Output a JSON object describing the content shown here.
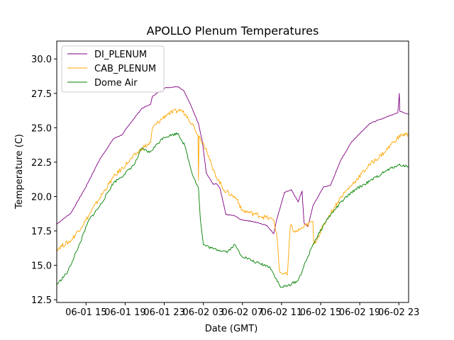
{
  "chart_data": {
    "type": "line",
    "title": "APOLLO Plenum Temperatures",
    "xlabel": "Date (GMT)",
    "ylabel": "Temperature (C)",
    "x_units": "hours since 06-01 00:00 GMT",
    "xlim": [
      12,
      48
    ],
    "ylim": [
      12.3,
      31.3
    ],
    "x_ticks": [
      {
        "value": 15,
        "label": "06-01 15"
      },
      {
        "value": 19,
        "label": "06-01 19"
      },
      {
        "value": 23,
        "label": "06-01 23"
      },
      {
        "value": 27,
        "label": "06-02 03"
      },
      {
        "value": 31,
        "label": "06-02 07"
      },
      {
        "value": 35,
        "label": "06-02 11"
      },
      {
        "value": 39,
        "label": "06-02 15"
      },
      {
        "value": 43,
        "label": "06-02 19"
      },
      {
        "value": 47,
        "label": "06-02 23"
      }
    ],
    "y_ticks": [
      {
        "value": 12.5,
        "label": "12.5"
      },
      {
        "value": 15.0,
        "label": "15.0"
      },
      {
        "value": 17.5,
        "label": "17.5"
      },
      {
        "value": 20.0,
        "label": "20.0"
      },
      {
        "value": 22.5,
        "label": "22.5"
      },
      {
        "value": 25.0,
        "label": "25.0"
      },
      {
        "value": 27.5,
        "label": "27.5"
      },
      {
        "value": 30.0,
        "label": "30.0"
      }
    ],
    "grid": false,
    "legend_position": "top-left",
    "series": [
      {
        "name": "DI_PLENUM",
        "color": "#800080",
        "points": [
          [
            12.0,
            18.0
          ],
          [
            13.45,
            18.8
          ],
          [
            14.9,
            20.6
          ],
          [
            16.4,
            22.7
          ],
          [
            17.8,
            24.2
          ],
          [
            18.7,
            24.5
          ],
          [
            19.6,
            25.4
          ],
          [
            20.7,
            26.4
          ],
          [
            21.6,
            26.7
          ],
          [
            21.8,
            27.3
          ],
          [
            23.1,
            27.9
          ],
          [
            24.4,
            28.0
          ],
          [
            25.0,
            27.7
          ],
          [
            25.8,
            26.5
          ],
          [
            26.5,
            25.3
          ],
          [
            26.9,
            24.0
          ],
          [
            27.3,
            21.7
          ],
          [
            28.0,
            20.9
          ],
          [
            28.4,
            20.9
          ],
          [
            28.7,
            20.6
          ],
          [
            29.3,
            18.7
          ],
          [
            30.2,
            18.6
          ],
          [
            30.9,
            18.3
          ],
          [
            32.0,
            18.2
          ],
          [
            33.5,
            17.9
          ],
          [
            34.2,
            17.3
          ],
          [
            34.5,
            18.3
          ],
          [
            34.9,
            19.3
          ],
          [
            35.3,
            20.3
          ],
          [
            36.0,
            20.5
          ],
          [
            36.7,
            19.6
          ],
          [
            37.1,
            20.4
          ],
          [
            37.3,
            18.1
          ],
          [
            37.7,
            17.8
          ],
          [
            38.2,
            19.3
          ],
          [
            39.3,
            20.7
          ],
          [
            40.0,
            20.8
          ],
          [
            41.1,
            22.7
          ],
          [
            42.2,
            24.0
          ],
          [
            44.0,
            25.3
          ],
          [
            46.5,
            26.0
          ],
          [
            46.9,
            26.1
          ],
          [
            47.05,
            27.5
          ],
          [
            47.1,
            26.2
          ],
          [
            48.0,
            26.0
          ]
        ]
      },
      {
        "name": "CAB_PLENUM",
        "color": "#ffa500",
        "points": [
          [
            12.0,
            16.2
          ],
          [
            13.45,
            16.8
          ],
          [
            14.9,
            18.2
          ],
          [
            16.4,
            19.9
          ],
          [
            17.8,
            21.4
          ],
          [
            19.3,
            22.5
          ],
          [
            20.7,
            23.5
          ],
          [
            21.6,
            23.9
          ],
          [
            21.8,
            25.0
          ],
          [
            23.3,
            26.0
          ],
          [
            24.7,
            26.3
          ],
          [
            25.4,
            25.8
          ],
          [
            26.1,
            25.0
          ],
          [
            26.45,
            24.5
          ],
          [
            26.5,
            21.2
          ],
          [
            26.55,
            24.4
          ],
          [
            26.7,
            24.2
          ],
          [
            27.3,
            23.5
          ],
          [
            28.0,
            21.9
          ],
          [
            29.1,
            20.5
          ],
          [
            30.5,
            19.8
          ],
          [
            30.9,
            19.0
          ],
          [
            32.4,
            18.7
          ],
          [
            34.2,
            18.3
          ],
          [
            34.5,
            17.3
          ],
          [
            34.8,
            14.5
          ],
          [
            35.6,
            14.3
          ],
          [
            35.9,
            17.9
          ],
          [
            36.4,
            17.4
          ],
          [
            37.1,
            17.7
          ],
          [
            38.2,
            18.2
          ],
          [
            38.3,
            16.5
          ],
          [
            39.6,
            18.3
          ],
          [
            41.1,
            20.0
          ],
          [
            42.5,
            21.1
          ],
          [
            44.0,
            22.3
          ],
          [
            45.5,
            23.2
          ],
          [
            46.5,
            24.0
          ],
          [
            47.3,
            24.5
          ],
          [
            48.0,
            24.5
          ]
        ]
      },
      {
        "name": "Dome Air",
        "color": "#008000",
        "points": [
          [
            12.0,
            13.6
          ],
          [
            13.1,
            14.5
          ],
          [
            14.2,
            16.3
          ],
          [
            15.3,
            18.3
          ],
          [
            16.4,
            19.3
          ],
          [
            17.8,
            21.0
          ],
          [
            18.9,
            21.6
          ],
          [
            20.0,
            22.4
          ],
          [
            20.7,
            23.5
          ],
          [
            21.5,
            23.2
          ],
          [
            22.9,
            24.3
          ],
          [
            24.4,
            24.6
          ],
          [
            25.1,
            23.7
          ],
          [
            25.8,
            21.8
          ],
          [
            26.5,
            20.6
          ],
          [
            26.7,
            18.3
          ],
          [
            27.0,
            16.5
          ],
          [
            28.0,
            16.2
          ],
          [
            29.5,
            16.0
          ],
          [
            30.2,
            16.5
          ],
          [
            30.9,
            15.7
          ],
          [
            32.4,
            15.2
          ],
          [
            33.8,
            14.9
          ],
          [
            34.9,
            13.4
          ],
          [
            35.6,
            13.5
          ],
          [
            36.7,
            13.9
          ],
          [
            38.2,
            16.5
          ],
          [
            39.6,
            18.3
          ],
          [
            41.1,
            19.6
          ],
          [
            42.5,
            20.5
          ],
          [
            44.0,
            21.1
          ],
          [
            45.8,
            21.9
          ],
          [
            46.9,
            22.3
          ],
          [
            48.0,
            22.2
          ]
        ]
      }
    ]
  }
}
